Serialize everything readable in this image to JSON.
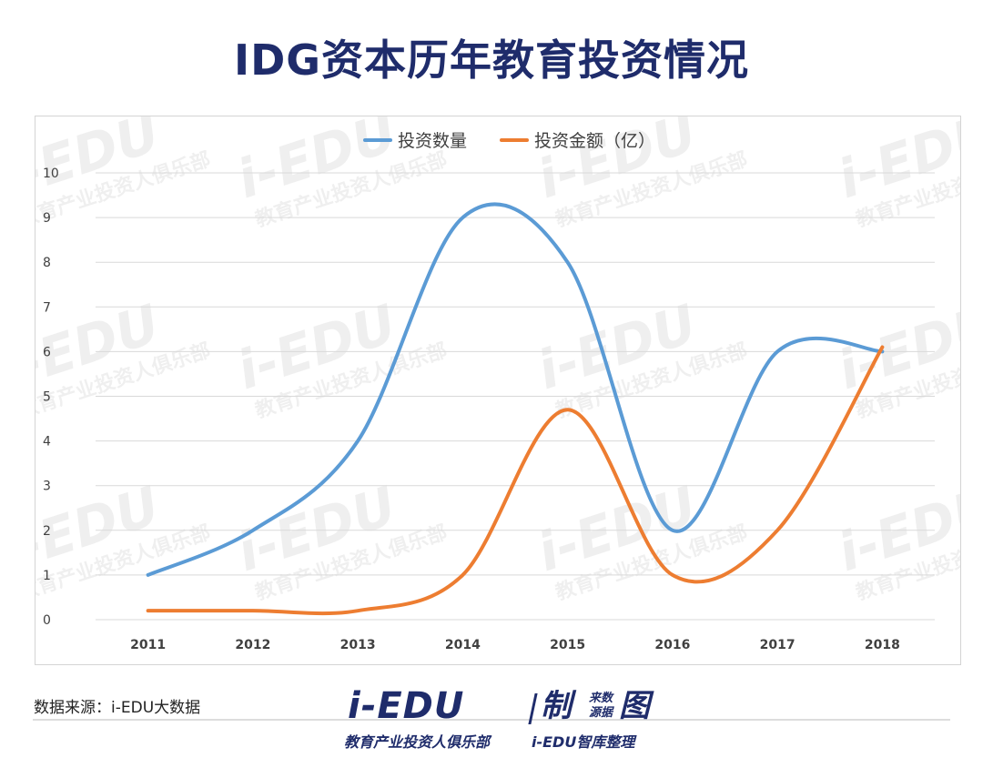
{
  "title": "IDG资本历年教育投资情况",
  "source": "数据来源：i-EDU大数据",
  "brand": {
    "logo": "i-EDU",
    "zhi": "制",
    "stack_top": "来数",
    "stack_bottom": "源据",
    "tu": "图",
    "tagline_left": "教育产业投资人俱乐部",
    "tagline_right": "i-EDU智库整理"
  },
  "watermark": {
    "logo": "i-EDU",
    "tagline": "教育产业投资人俱乐部"
  },
  "colors": {
    "title": "#1f2c6b",
    "series_count": "#5b9bd5",
    "series_amount": "#ed7d31",
    "grid": "#d9d9d9",
    "axis_text": "#404040"
  },
  "chart_data": {
    "type": "line",
    "smooth": true,
    "title": "",
    "xlabel": "",
    "ylabel": "",
    "categories": [
      "2011",
      "2012",
      "2013",
      "2014",
      "2015",
      "2016",
      "2017",
      "2018"
    ],
    "ylim": [
      0,
      10
    ],
    "yticks": [
      "0",
      "1",
      "2",
      "3",
      "4",
      "5",
      "6",
      "7",
      "8",
      "9",
      "10"
    ],
    "grid": true,
    "legend_position": "top-center",
    "series": [
      {
        "name": "投资数量",
        "color": "#5b9bd5",
        "values": [
          1,
          2,
          4,
          9,
          8,
          2,
          6,
          6
        ]
      },
      {
        "name": "投资金额（亿）",
        "color": "#ed7d31",
        "values": [
          0.2,
          0.2,
          0.2,
          1,
          4.7,
          1,
          2,
          6.1
        ]
      }
    ]
  }
}
